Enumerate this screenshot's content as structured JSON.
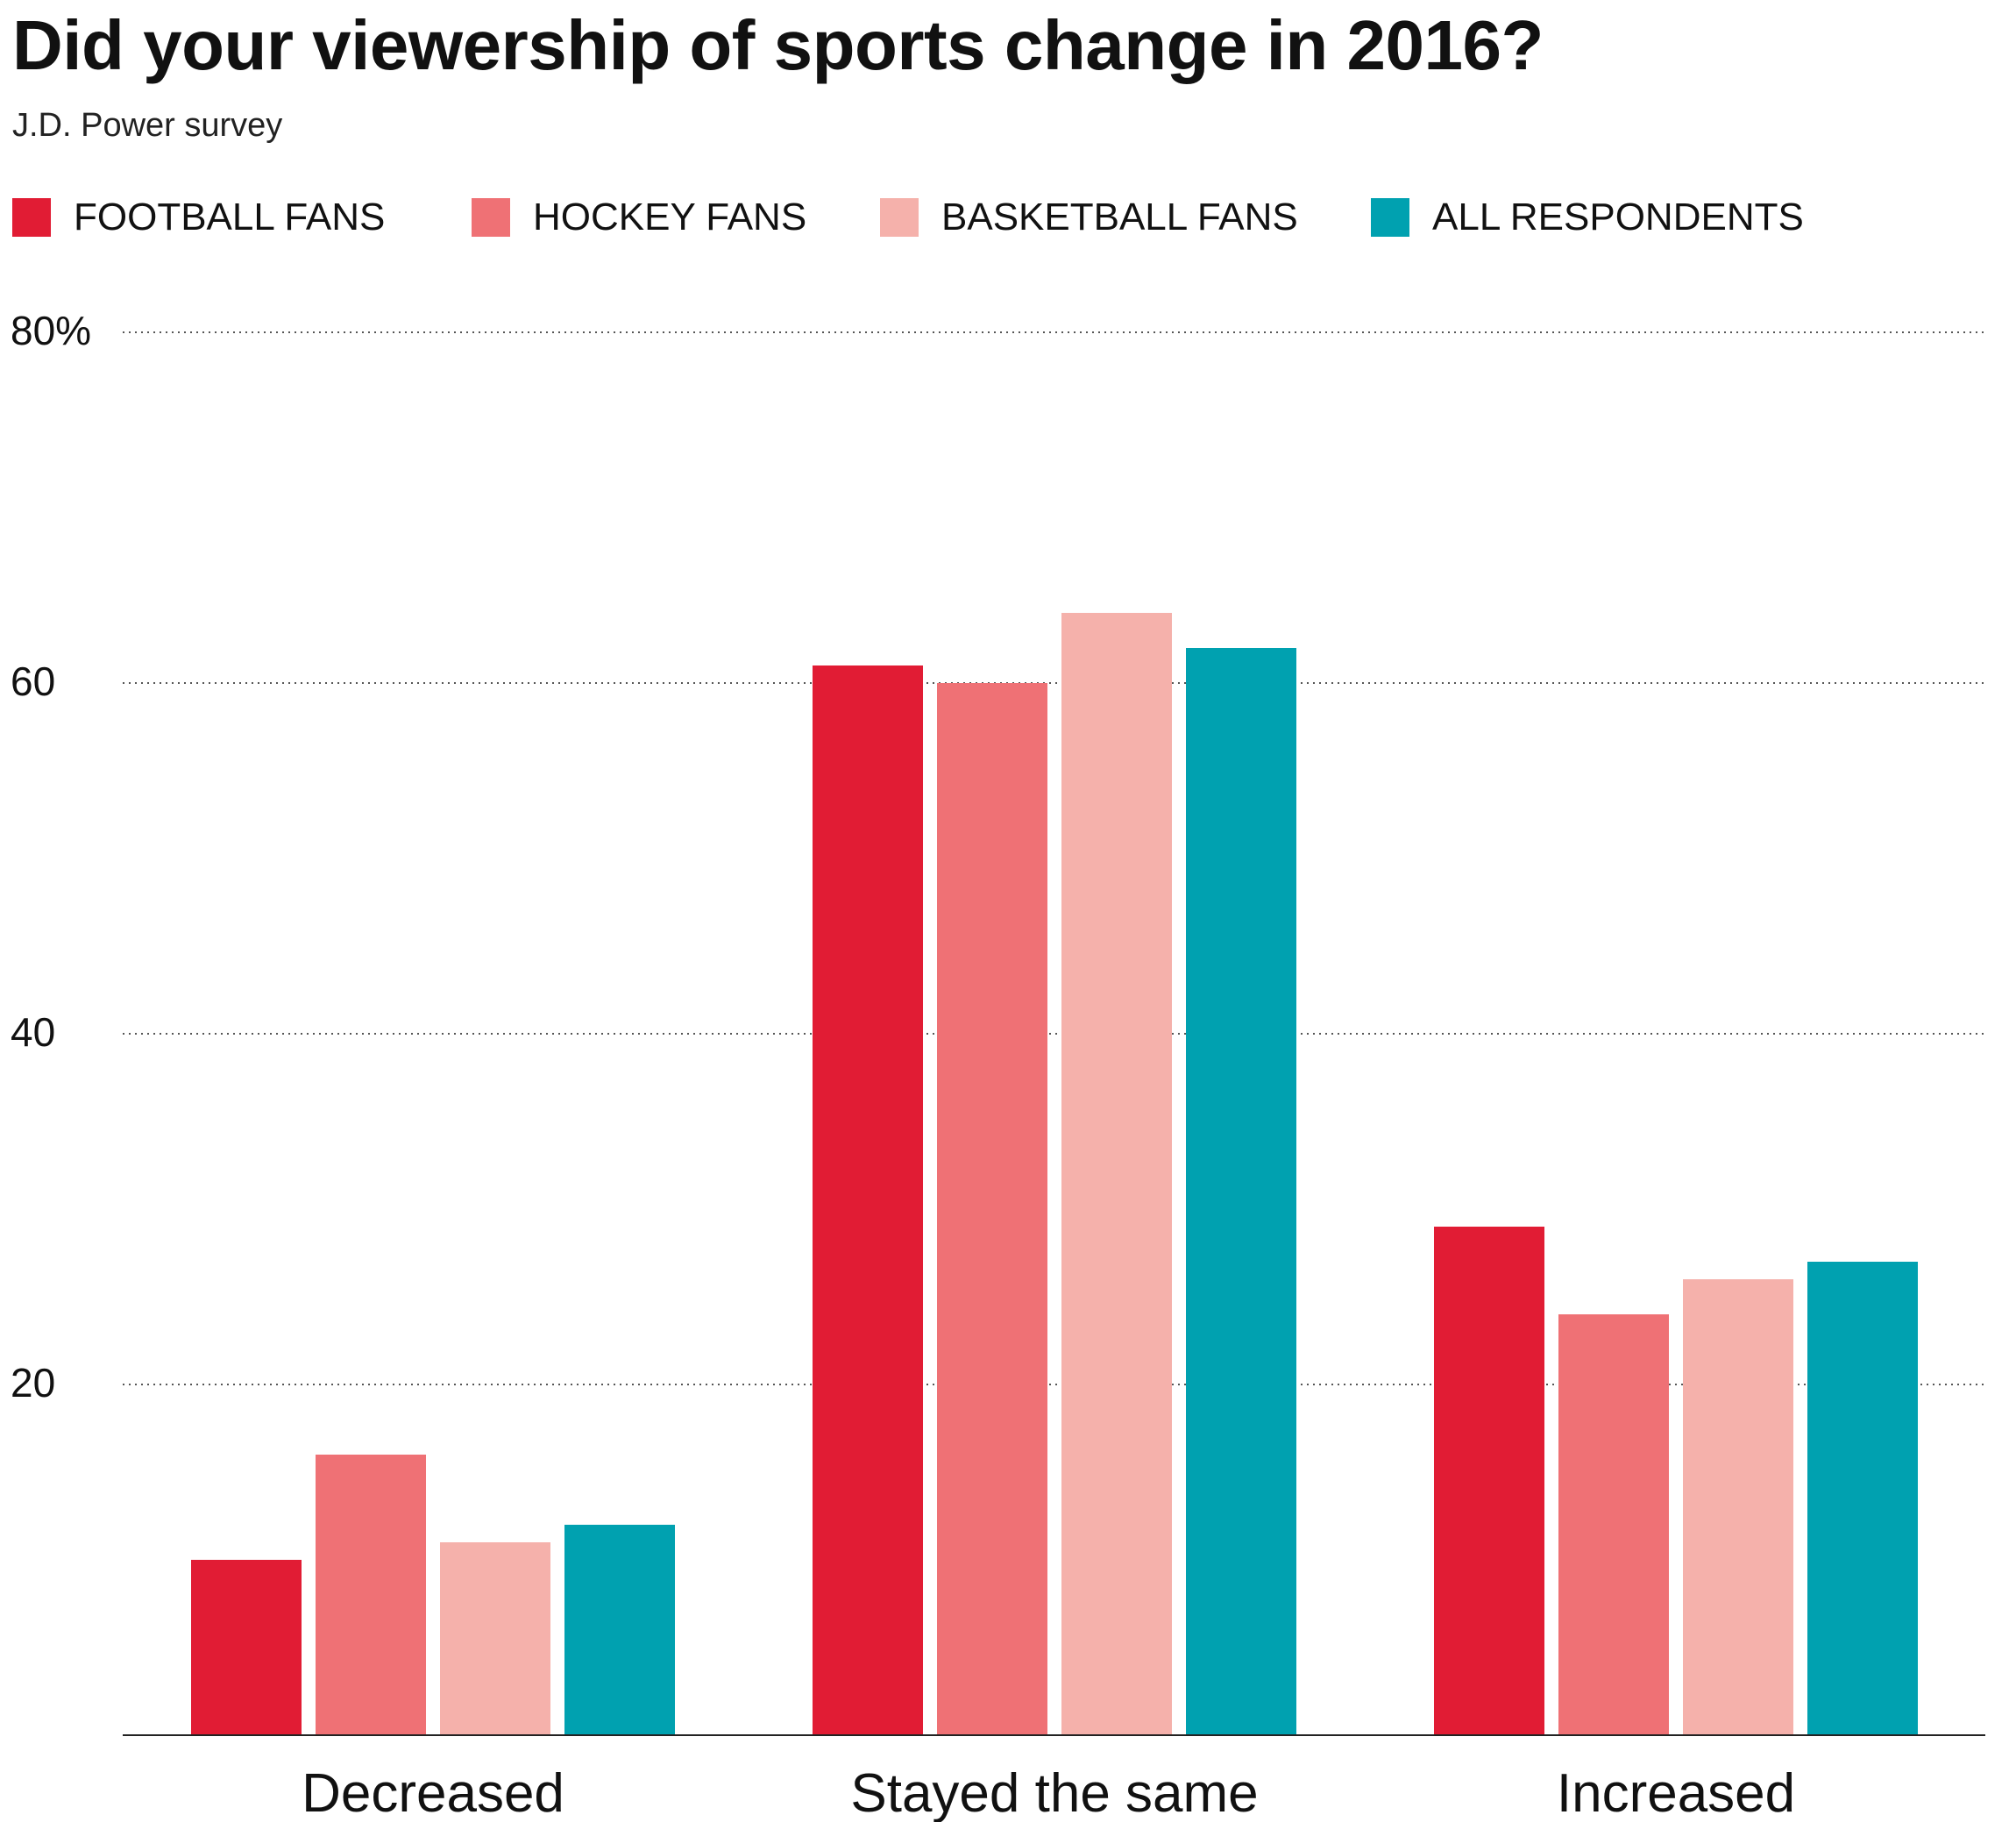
{
  "title": "Did your viewership of sports change in 2016?",
  "subtitle": "J.D. Power survey",
  "legend": [
    {
      "label": "FOOTBALL FANS",
      "color": "#e11c34"
    },
    {
      "label": "HOCKEY FANS",
      "color": "#ef7175"
    },
    {
      "label": "BASKETBALL FANS",
      "color": "#f5b1ab"
    },
    {
      "label": "ALL RESPONDENTS",
      "color": "#00a1b0"
    }
  ],
  "chart_data": {
    "type": "bar",
    "title": "Did your viewership of sports change in 2016?",
    "subtitle": "J.D. Power survey",
    "categories": [
      "Decreased",
      "Stayed the same",
      "Increased"
    ],
    "series": [
      {
        "name": "FOOTBALL FANS",
        "color": "#e11c34",
        "values": [
          10,
          61,
          29
        ]
      },
      {
        "name": "HOCKEY FANS",
        "color": "#ef7175",
        "values": [
          16,
          60,
          24
        ]
      },
      {
        "name": "BASKETBALL FANS",
        "color": "#f5b1ab",
        "values": [
          11,
          64,
          26
        ]
      },
      {
        "name": "ALL RESPONDENTS",
        "color": "#00a1b0",
        "values": [
          12,
          62,
          27
        ]
      }
    ],
    "yticks": [
      {
        "value": 20,
        "label": "20"
      },
      {
        "value": 40,
        "label": "40"
      },
      {
        "value": 60,
        "label": "60"
      },
      {
        "value": 80,
        "label": "80%"
      }
    ],
    "ylim": [
      0,
      80
    ],
    "grid": true,
    "legend_position": "top",
    "xlabel": "",
    "ylabel": ""
  }
}
